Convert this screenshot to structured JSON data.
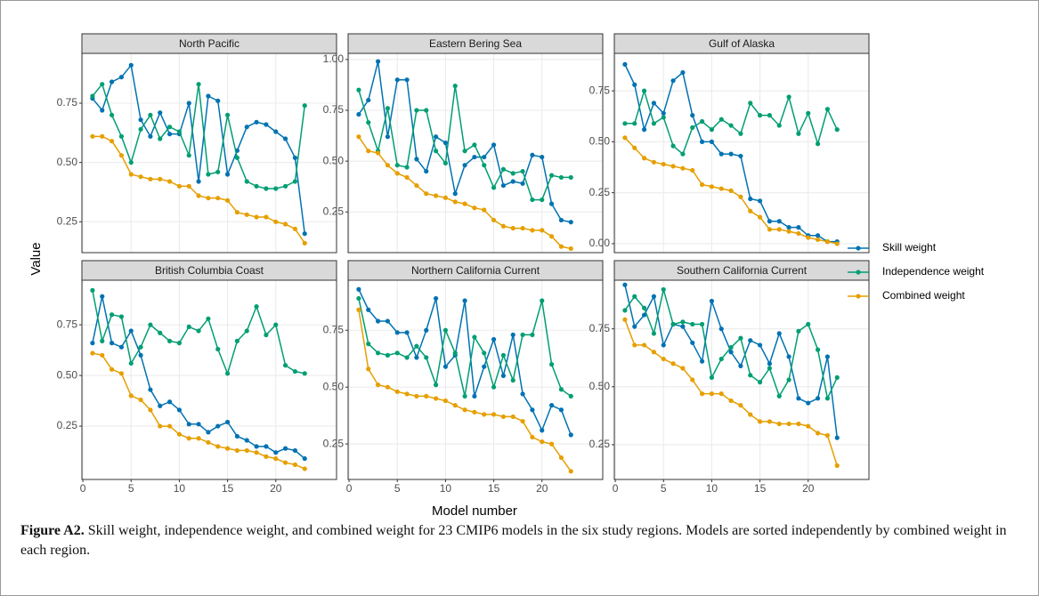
{
  "axis_labels": {
    "x": "Model number",
    "y": "Value"
  },
  "legend": [
    {
      "name": "Skill weight",
      "color": "#0072B2"
    },
    {
      "name": "Independence weight",
      "color": "#009E73"
    },
    {
      "name": "Combined weight",
      "color": "#E69F00"
    }
  ],
  "caption": {
    "label": "Figure A2.",
    "text": "Skill weight, independence weight, and combined weight for 23 CMIP6 models in the six study regions. Models are sorted independently by combined weight in each region."
  },
  "chart_data": [
    {
      "type": "line",
      "title": "North Pacific",
      "x": [
        1,
        2,
        3,
        4,
        5,
        6,
        7,
        8,
        9,
        10,
        11,
        12,
        13,
        14,
        15,
        16,
        17,
        18,
        19,
        20,
        21,
        22,
        23
      ],
      "xlim": [
        -0.1,
        26.3
      ],
      "xticks": [
        0,
        5,
        10,
        15,
        20
      ],
      "ylim": [
        0.12,
        0.96
      ],
      "yticks": [
        0.25,
        {
          "value": 0.5,
          "label": "0.50"
        },
        0.75
      ],
      "grid": true,
      "series": [
        {
          "values": [
            0.77,
            0.72,
            0.84,
            0.86,
            0.91,
            0.68,
            0.61,
            0.71,
            0.62,
            0.62,
            0.75,
            0.42,
            0.78,
            0.76,
            0.45,
            0.55,
            0.65,
            0.67,
            0.66,
            0.63,
            0.6,
            0.52,
            0.2
          ]
        },
        {
          "values": [
            0.78,
            0.83,
            0.7,
            0.61,
            0.5,
            0.64,
            0.7,
            0.6,
            0.65,
            0.63,
            0.53,
            0.83,
            0.45,
            0.46,
            0.7,
            0.52,
            0.42,
            0.4,
            0.39,
            0.39,
            0.4,
            0.42,
            0.74
          ]
        },
        {
          "values": [
            0.61,
            0.61,
            0.59,
            0.53,
            0.45,
            0.44,
            0.43,
            0.43,
            0.42,
            0.4,
            0.4,
            0.36,
            0.35,
            0.35,
            0.34,
            0.29,
            0.28,
            0.27,
            0.27,
            0.25,
            0.24,
            0.22,
            0.16
          ]
        }
      ]
    },
    {
      "type": "line",
      "title": "Eastern Bering Sea",
      "x": [
        1,
        2,
        3,
        4,
        5,
        6,
        7,
        8,
        9,
        10,
        11,
        12,
        13,
        14,
        15,
        16,
        17,
        18,
        19,
        20,
        21,
        22,
        23
      ],
      "xlim": [
        -0.1,
        26.3
      ],
      "xticks": [
        0,
        5,
        10,
        15,
        20
      ],
      "ylim": [
        0.05,
        1.03
      ],
      "yticks": [
        0.25,
        {
          "value": 0.5,
          "label": "0.50"
        },
        0.75,
        {
          "value": 1,
          "label": "1.00"
        }
      ],
      "grid": true,
      "series": [
        {
          "values": [
            0.73,
            0.8,
            0.99,
            0.62,
            0.9,
            0.9,
            0.51,
            0.45,
            0.62,
            0.59,
            0.34,
            0.48,
            0.52,
            0.52,
            0.58,
            0.38,
            0.4,
            0.39,
            0.53,
            0.52,
            0.29,
            0.21,
            0.2
          ]
        },
        {
          "values": [
            0.85,
            0.69,
            0.55,
            0.76,
            0.48,
            0.47,
            0.75,
            0.75,
            0.55,
            0.49,
            0.87,
            0.55,
            0.58,
            0.48,
            0.37,
            0.46,
            0.44,
            0.45,
            0.31,
            0.31,
            0.43,
            0.42,
            0.42
          ]
        },
        {
          "values": [
            0.62,
            0.55,
            0.54,
            0.48,
            0.44,
            0.42,
            0.38,
            0.34,
            0.33,
            0.32,
            0.3,
            0.29,
            0.27,
            0.26,
            0.21,
            0.18,
            0.17,
            0.17,
            0.16,
            0.16,
            0.13,
            0.08,
            0.07
          ]
        }
      ]
    },
    {
      "type": "line",
      "title": "Gulf of Alaska",
      "x": [
        1,
        2,
        3,
        4,
        5,
        6,
        7,
        8,
        9,
        10,
        11,
        12,
        13,
        14,
        15,
        16,
        17,
        18,
        19,
        20,
        21,
        22,
        23
      ],
      "xlim": [
        -0.1,
        26.3
      ],
      "xticks": [
        0,
        5,
        10,
        15,
        20
      ],
      "ylim": [
        -0.044,
        0.934
      ],
      "yticks": [
        {
          "value": 0,
          "label": "0.00"
        },
        0.25,
        {
          "value": 0.5,
          "label": "0.50"
        },
        0.75
      ],
      "grid": true,
      "series": [
        {
          "values": [
            0.88,
            0.78,
            0.56,
            0.69,
            0.64,
            0.8,
            0.84,
            0.63,
            0.5,
            0.5,
            0.44,
            0.44,
            0.43,
            0.22,
            0.21,
            0.11,
            0.11,
            0.08,
            0.08,
            0.04,
            0.04,
            0.01,
            0.01
          ]
        },
        {
          "values": [
            0.59,
            0.59,
            0.75,
            0.59,
            0.62,
            0.48,
            0.44,
            0.57,
            0.6,
            0.56,
            0.61,
            0.58,
            0.54,
            0.69,
            0.63,
            0.63,
            0.58,
            0.72,
            0.54,
            0.64,
            0.49,
            0.66,
            0.56
          ]
        },
        {
          "values": [
            0.52,
            0.47,
            0.42,
            0.4,
            0.39,
            0.38,
            0.37,
            0.36,
            0.29,
            0.28,
            0.27,
            0.26,
            0.23,
            0.16,
            0.13,
            0.07,
            0.07,
            0.06,
            0.05,
            0.03,
            0.02,
            0.01,
            0.0
          ]
        }
      ]
    },
    {
      "type": "line",
      "title": "British Columbia Coast",
      "x": [
        1,
        2,
        3,
        4,
        5,
        6,
        7,
        8,
        9,
        10,
        11,
        12,
        13,
        14,
        15,
        16,
        17,
        18,
        19,
        20,
        21,
        22,
        23
      ],
      "xlim": [
        -0.1,
        26.3
      ],
      "xticks": [
        0,
        5,
        10,
        15,
        20
      ],
      "ylim": [
        -0.013,
        0.97
      ],
      "yticks": [
        0.25,
        {
          "value": 0.5,
          "label": "0.50"
        },
        0.75
      ],
      "grid": true,
      "series": [
        {
          "values": [
            0.66,
            0.89,
            0.66,
            0.64,
            0.72,
            0.6,
            0.43,
            0.35,
            0.37,
            0.33,
            0.26,
            0.26,
            0.22,
            0.25,
            0.27,
            0.2,
            0.18,
            0.15,
            0.15,
            0.12,
            0.14,
            0.13,
            0.09
          ]
        },
        {
          "values": [
            0.92,
            0.67,
            0.8,
            0.79,
            0.56,
            0.64,
            0.75,
            0.71,
            0.67,
            0.66,
            0.74,
            0.72,
            0.78,
            0.63,
            0.51,
            0.67,
            0.72,
            0.84,
            0.7,
            0.75,
            0.55,
            0.52,
            0.51
          ]
        },
        {
          "values": [
            0.61,
            0.6,
            0.53,
            0.51,
            0.4,
            0.38,
            0.33,
            0.25,
            0.25,
            0.21,
            0.19,
            0.19,
            0.17,
            0.15,
            0.14,
            0.13,
            0.13,
            0.12,
            0.1,
            0.09,
            0.07,
            0.06,
            0.04
          ]
        }
      ]
    },
    {
      "type": "line",
      "title": "Northern California Current",
      "x": [
        1,
        2,
        3,
        4,
        5,
        6,
        7,
        8,
        9,
        10,
        11,
        12,
        13,
        14,
        15,
        16,
        17,
        18,
        19,
        20,
        21,
        22,
        23
      ],
      "xlim": [
        -0.1,
        26.3
      ],
      "xticks": [
        0,
        5,
        10,
        15,
        20
      ],
      "ylim": [
        0.094,
        0.97
      ],
      "yticks": [
        0.25,
        {
          "value": 0.5,
          "label": "0.50"
        },
        0.75
      ],
      "grid": true,
      "series": [
        {
          "values": [
            0.93,
            0.84,
            0.79,
            0.79,
            0.74,
            0.74,
            0.63,
            0.75,
            0.89,
            0.59,
            0.64,
            0.88,
            0.46,
            0.59,
            0.71,
            0.55,
            0.73,
            0.47,
            0.4,
            0.31,
            0.42,
            0.4,
            0.29
          ]
        },
        {
          "values": [
            0.89,
            0.69,
            0.65,
            0.64,
            0.65,
            0.63,
            0.68,
            0.63,
            0.51,
            0.75,
            0.65,
            0.46,
            0.72,
            0.65,
            0.5,
            0.64,
            0.53,
            0.73,
            0.73,
            0.88,
            0.6,
            0.49,
            0.46
          ]
        },
        {
          "values": [
            0.84,
            0.58,
            0.51,
            0.5,
            0.48,
            0.47,
            0.46,
            0.46,
            0.45,
            0.44,
            0.42,
            0.4,
            0.39,
            0.38,
            0.38,
            0.37,
            0.37,
            0.35,
            0.28,
            0.26,
            0.25,
            0.19,
            0.13
          ]
        }
      ]
    },
    {
      "type": "line",
      "title": "Southern California Current",
      "x": [
        1,
        2,
        3,
        4,
        5,
        6,
        7,
        8,
        9,
        10,
        11,
        12,
        13,
        14,
        15,
        16,
        17,
        18,
        19,
        20,
        21,
        22,
        23
      ],
      "xlim": [
        -0.1,
        26.3
      ],
      "xticks": [
        0,
        5,
        10,
        15,
        20
      ],
      "ylim": [
        0.1,
        0.96
      ],
      "yticks": [
        0.25,
        {
          "value": 0.5,
          "label": "0.50"
        },
        0.75
      ],
      "grid": true,
      "series": [
        {
          "values": [
            0.94,
            0.76,
            0.81,
            0.89,
            0.68,
            0.77,
            0.76,
            0.69,
            0.61,
            0.87,
            0.75,
            0.65,
            0.59,
            0.7,
            0.68,
            0.6,
            0.73,
            0.63,
            0.45,
            0.43,
            0.45,
            0.63,
            0.28
          ]
        },
        {
          "values": [
            0.83,
            0.89,
            0.84,
            0.73,
            0.92,
            0.77,
            0.78,
            0.77,
            0.77,
            0.54,
            0.62,
            0.67,
            0.71,
            0.55,
            0.52,
            0.58,
            0.46,
            0.53,
            0.74,
            0.77,
            0.66,
            0.45,
            0.54
          ]
        },
        {
          "values": [
            0.79,
            0.68,
            0.68,
            0.65,
            0.62,
            0.6,
            0.58,
            0.53,
            0.47,
            0.47,
            0.47,
            0.44,
            0.42,
            0.38,
            0.35,
            0.35,
            0.34,
            0.34,
            0.34,
            0.33,
            0.3,
            0.29,
            0.16
          ]
        }
      ]
    }
  ]
}
